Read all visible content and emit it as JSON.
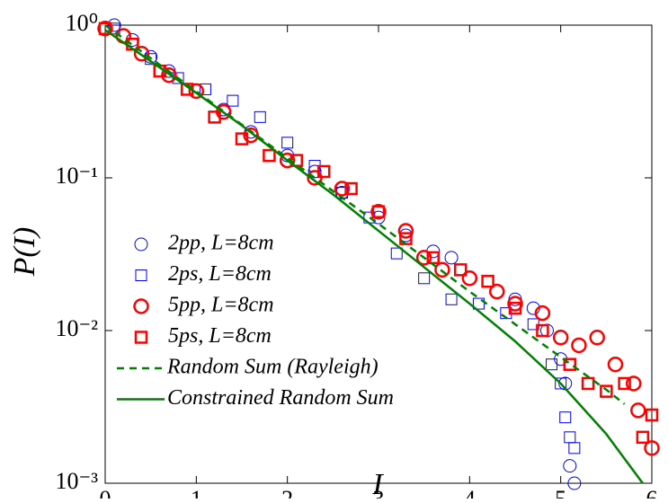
{
  "chart_data": {
    "type": "scatter",
    "xlabel": "I",
    "ylabel": "P(I)",
    "xlim": [
      0,
      6
    ],
    "xticks": [
      0,
      1,
      2,
      3,
      4,
      5,
      6
    ],
    "ylim": [
      0.001,
      1
    ],
    "yscale": "log",
    "yticks": [
      {
        "value": 1,
        "label": "10⁰"
      },
      {
        "value": 0.1,
        "label": "10⁻¹"
      },
      {
        "value": 0.01,
        "label": "10⁻²"
      },
      {
        "value": 0.001,
        "label": "10⁻³"
      }
    ],
    "legend": "lower left",
    "series": [
      {
        "name": "2pp, L=8cm",
        "color": "#0000ff",
        "marker": "circle",
        "x": [
          0.1,
          0.3,
          0.5,
          0.7,
          1.0,
          1.3,
          1.6,
          2.0,
          2.3,
          2.6,
          3.0,
          3.3,
          3.6,
          3.8,
          4.0,
          4.3,
          4.5,
          4.7,
          4.85,
          5.0,
          5.05,
          5.1,
          5.15
        ],
        "values": [
          1.0,
          0.8,
          0.62,
          0.5,
          0.37,
          0.28,
          0.2,
          0.14,
          0.11,
          0.08,
          0.055,
          0.042,
          0.033,
          0.03,
          0.022,
          0.018,
          0.016,
          0.014,
          0.01,
          0.0065,
          0.0045,
          0.0013,
          0.001
        ]
      },
      {
        "name": "2ps, L=8cm",
        "color": "#0000ff",
        "marker": "square",
        "x": [
          0.1,
          0.3,
          0.5,
          0.8,
          1.1,
          1.4,
          1.7,
          2.0,
          2.3,
          2.6,
          2.9,
          3.2,
          3.5,
          3.8,
          4.1,
          4.4,
          4.7,
          4.9,
          5.0,
          5.05,
          5.1,
          5.15
        ],
        "values": [
          0.95,
          0.75,
          0.6,
          0.45,
          0.38,
          0.32,
          0.25,
          0.17,
          0.12,
          0.08,
          0.055,
          0.032,
          0.022,
          0.016,
          0.015,
          0.013,
          0.011,
          0.006,
          0.0045,
          0.0027,
          0.002,
          0.0017
        ]
      },
      {
        "name": "5pp, L=8cm",
        "color": "#ff0000",
        "marker": "circle-bold",
        "x": [
          0.0,
          0.2,
          0.4,
          0.7,
          1.0,
          1.3,
          1.6,
          2.0,
          2.3,
          2.6,
          3.0,
          3.3,
          3.5,
          3.7,
          4.0,
          4.3,
          4.5,
          4.8,
          5.0,
          5.2,
          5.4,
          5.6,
          5.8,
          5.85,
          6.0
        ],
        "values": [
          0.95,
          0.85,
          0.65,
          0.47,
          0.37,
          0.27,
          0.19,
          0.13,
          0.1,
          0.085,
          0.06,
          0.045,
          0.03,
          0.025,
          0.022,
          0.018,
          0.015,
          0.013,
          0.009,
          0.008,
          0.009,
          0.006,
          0.0045,
          0.003,
          0.0017
        ]
      },
      {
        "name": "5ps, L=8cm",
        "color": "#ff0000",
        "marker": "square-bold",
        "x": [
          0.0,
          0.3,
          0.6,
          0.9,
          1.2,
          1.5,
          1.8,
          2.1,
          2.4,
          2.7,
          3.0,
          3.3,
          3.6,
          3.9,
          4.2,
          4.5,
          4.8,
          5.1,
          5.3,
          5.5,
          5.7,
          5.9,
          6.0
        ],
        "values": [
          0.95,
          0.75,
          0.5,
          0.38,
          0.25,
          0.18,
          0.14,
          0.13,
          0.11,
          0.085,
          0.06,
          0.04,
          0.03,
          0.025,
          0.021,
          0.014,
          0.01,
          0.006,
          0.0045,
          0.004,
          0.0045,
          0.002,
          0.0028
        ]
      },
      {
        "name": "Random Sum (Rayleigh)",
        "color": "#008000",
        "line": "dashed",
        "x": [
          0,
          0.5,
          1,
          1.5,
          2,
          2.5,
          3,
          3.5,
          4,
          4.5,
          5,
          5.5,
          5.7
        ],
        "values": [
          1,
          0.607,
          0.368,
          0.223,
          0.135,
          0.082,
          0.05,
          0.03,
          0.018,
          0.011,
          0.0067,
          0.0041,
          0.0033
        ]
      },
      {
        "name": "Constrained Random Sum",
        "color": "#008000",
        "line": "solid",
        "x": [
          0,
          0.5,
          1,
          1.5,
          2,
          2.5,
          3,
          3.5,
          4,
          4.5,
          5,
          5.5,
          5.9
        ],
        "values": [
          0.93,
          0.58,
          0.36,
          0.22,
          0.13,
          0.078,
          0.045,
          0.026,
          0.015,
          0.0085,
          0.0045,
          0.0021,
          0.001
        ]
      }
    ]
  }
}
